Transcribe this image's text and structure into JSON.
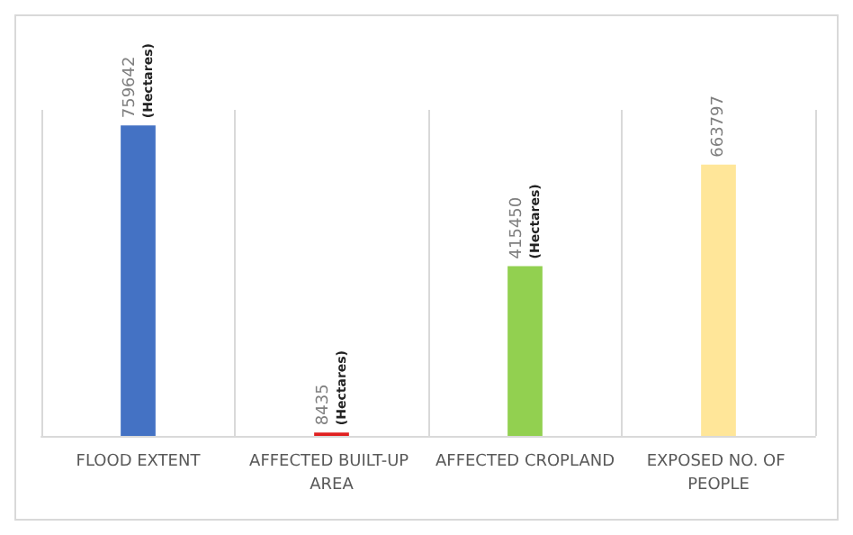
{
  "chart_data": {
    "type": "bar",
    "categories": [
      "FLOOD EXTENT",
      "AFFECTED BUILT-UP AREA",
      "AFFECTED CROPLAND",
      "EXPOSED NO. OF PEOPLE"
    ],
    "values": [
      759642,
      8435,
      415450,
      663797
    ],
    "colors": [
      "#4472c4",
      "#e02020",
      "#92d050",
      "#ffe699"
    ],
    "value_labels": [
      "759642\n(Hectares)",
      "8435\n(Hectares)",
      "415450\n(Hectares)",
      "663797"
    ],
    "grid": "x"
  }
}
